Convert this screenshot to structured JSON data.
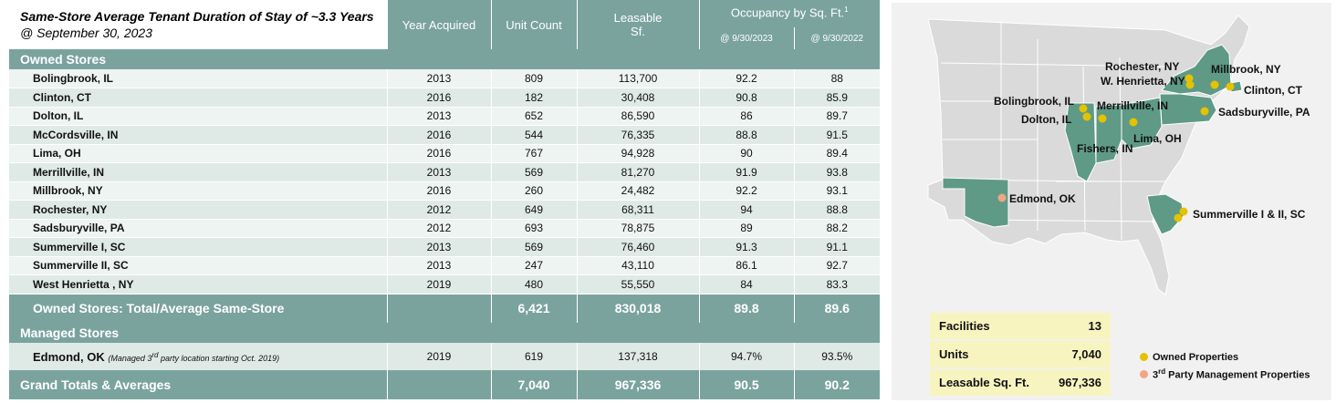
{
  "title": {
    "main": "Same-Store Average Tenant Duration of Stay of ~3.3 Years",
    "sub": "@ September 30, 2023"
  },
  "headers": {
    "year": "Year Acquired",
    "units": "Unit Count",
    "sf_line1": "Leasable",
    "sf_line2": "Sf.",
    "occupancy": "Occupancy by Sq. Ft.",
    "occupancy_sup": "1",
    "occ_2023": "@ 9/30/2023",
    "occ_2022": "@ 9/30/2022"
  },
  "owned": {
    "label": "Owned Stores",
    "rows": [
      {
        "name": "Bolingbrook, IL",
        "year": "2013",
        "units": "809",
        "sf": "113,700",
        "o23": "92.2",
        "o22": "88"
      },
      {
        "name": "Clinton, CT",
        "year": "2016",
        "units": "182",
        "sf": "30,408",
        "o23": "90.8",
        "o22": "85.9"
      },
      {
        "name": "Dolton, IL",
        "year": "2013",
        "units": "652",
        "sf": "86,590",
        "o23": "86",
        "o22": "89.7"
      },
      {
        "name": "McCordsville, IN",
        "year": "2016",
        "units": "544",
        "sf": "76,335",
        "o23": "88.8",
        "o22": "91.5"
      },
      {
        "name": "Lima, OH",
        "year": "2016",
        "units": "767",
        "sf": "94,928",
        "o23": "90",
        "o22": "89.4"
      },
      {
        "name": "Merrillville,  IN",
        "year": "2013",
        "units": "569",
        "sf": "81,270",
        "o23": "91.9",
        "o22": "93.8"
      },
      {
        "name": "Millbrook, NY",
        "year": "2016",
        "units": "260",
        "sf": "24,482",
        "o23": "92.2",
        "o22": "93.1"
      },
      {
        "name": "Rochester, NY",
        "year": "2012",
        "units": "649",
        "sf": "68,311",
        "o23": "94",
        "o22": "88.8"
      },
      {
        "name": "Sadsburyville, PA",
        "year": "2012",
        "units": "693",
        "sf": "78,875",
        "o23": "89",
        "o22": "88.2"
      },
      {
        "name": "Summerville I,  SC",
        "year": "2013",
        "units": "569",
        "sf": "76,460",
        "o23": "91.3",
        "o22": "91.1"
      },
      {
        "name": "Summerville II, SC",
        "year": "2013",
        "units": "247",
        "sf": "43,110",
        "o23": "86.1",
        "o22": "92.7"
      },
      {
        "name": "West Henrietta , NY",
        "year": "2019",
        "units": "480",
        "sf": "55,550",
        "o23": "84",
        "o22": "83.3"
      }
    ],
    "total": {
      "name": "Owned Stores: Total/Average Same-Store",
      "units": "6,421",
      "sf": "830,018",
      "o23": "89.8",
      "o22": "89.6"
    }
  },
  "managed": {
    "label": "Managed Stores",
    "row": {
      "name": "Edmond, OK",
      "note_pre": "(Managed 3",
      "note_sup": "rd",
      "note_post": " party location starting Oct. 2019)",
      "year": "2019",
      "units": "619",
      "sf": "137,318",
      "o23": "94.7%",
      "o22": "93.5%"
    }
  },
  "grand": {
    "name": "Grand Totals & Averages",
    "units": "7,040",
    "sf": "967,336",
    "o23": "90.5",
    "o22": "90.2"
  },
  "map": {
    "cities": {
      "rochester": "Rochester, NY",
      "millbrook": "Millbrook, NY",
      "henrietta": "W. Henrietta, NY",
      "clinton": "Clinton, CT",
      "bolingbrook": "Bolingbrook, IL",
      "merrillville": "Merrillville, IN",
      "sadsburyville": "Sadsburyville, PA",
      "dolton": "Dolton, IL",
      "lima": "Lima, OH",
      "fishers": "Fishers, IN",
      "edmond": "Edmond, OK",
      "summerville": "Summerville I & II, SC"
    },
    "colors": {
      "land": "#dadada",
      "highlight": "#5f9a86",
      "owned_dot": "#e5c200",
      "managed_dot": "#f0a585"
    }
  },
  "stats": [
    {
      "label": "Facilities",
      "value": "13"
    },
    {
      "label": "Units",
      "value": "7,040"
    },
    {
      "label": "Leasable Sq. Ft.",
      "value": "967,336"
    }
  ],
  "legend": {
    "owned": "Owned Properties",
    "managed_pre": "3",
    "managed_sup": "rd",
    "managed_post": " Party Management Properties"
  }
}
